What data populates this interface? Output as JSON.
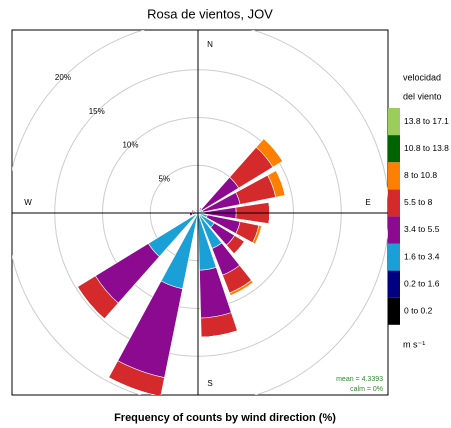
{
  "chart_data": {
    "type": "windrose",
    "title": "Rosa de vientos, JOV",
    "xlabel": "Frequency of counts by wind direction (%)",
    "legend_title": [
      "velocidad",
      "del viento"
    ],
    "unit": "m s⁻¹",
    "annotations": [
      "mean = 4.3393",
      "calm = 0%"
    ],
    "compass": [
      "N",
      "E",
      "S",
      "W"
    ],
    "directions": [
      10,
      30,
      50,
      70,
      90,
      110,
      130,
      150,
      170,
      200,
      230,
      260,
      290,
      330
    ],
    "rlim": [
      0,
      20
    ],
    "rticks": [
      {
        "value": 5,
        "label": "5%"
      },
      {
        "value": 10,
        "label": "10%"
      },
      {
        "value": 15,
        "label": "15%"
      },
      {
        "value": 20,
        "label": "20%"
      }
    ],
    "series": [
      {
        "name": "0 to 0.2",
        "color": "#000000",
        "values": [
          0,
          0,
          0,
          0,
          0,
          0,
          0,
          0,
          0,
          0,
          0,
          0,
          0,
          0
        ]
      },
      {
        "name": "0.2 to 1.6",
        "color": "#000080",
        "values": [
          0.1,
          0.1,
          0,
          0,
          0,
          0,
          0,
          0,
          0,
          0.1,
          0.1,
          0.1,
          0.1,
          0.1
        ]
      },
      {
        "name": "1.6 to 3.4",
        "color": "#1a9fd6",
        "values": [
          0.2,
          0.3,
          0.5,
          0.5,
          0.5,
          1,
          2,
          4,
          6,
          8,
          6,
          0.5,
          0.4,
          0.3
        ]
      },
      {
        "name": "3.4 to 5.5",
        "color": "#8b0a8f",
        "values": [
          0,
          0.2,
          4.5,
          4,
          3.5,
          3.5,
          2.5,
          3,
          5,
          9.5,
          6.5,
          0.3,
          0.2,
          0.1
        ]
      },
      {
        "name": "5.5 to 8",
        "color": "#d42a2c",
        "values": [
          0,
          0,
          4.2,
          3.8,
          3.5,
          2,
          1.2,
          2,
          2,
          2,
          2.2,
          0,
          0,
          0
        ]
      },
      {
        "name": "8 to 10.8",
        "color": "#ff8000",
        "values": [
          0,
          0,
          1.2,
          1,
          0,
          0.3,
          0,
          0.3,
          0,
          0,
          0,
          0,
          0,
          0
        ]
      },
      {
        "name": "10.8 to 13.8",
        "color": "#006400",
        "values": [
          0,
          0,
          0,
          0,
          0,
          0,
          0,
          0,
          0,
          0,
          0,
          0,
          0,
          0
        ]
      },
      {
        "name": "13.8 to 17.1",
        "color": "#9ccc5c",
        "values": [
          0,
          0,
          0,
          0,
          0,
          0,
          0,
          0,
          0,
          0,
          0,
          0,
          0,
          0
        ]
      }
    ]
  }
}
